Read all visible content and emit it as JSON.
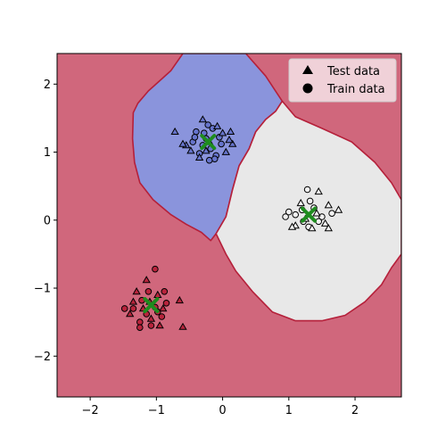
{
  "chart_data": {
    "type": "scatter",
    "title": "",
    "xlabel": "",
    "ylabel": "",
    "xlim": [
      -2.5,
      2.7
    ],
    "ylim": [
      -2.6,
      2.45
    ],
    "xticks": [
      "−2",
      "−1",
      "0",
      "1",
      "2"
    ],
    "xtick_values": [
      -2,
      -1,
      0,
      1,
      2
    ],
    "yticks": [
      "−2",
      "−1",
      "0",
      "1",
      "2"
    ],
    "ytick_values": [
      -2,
      -1,
      0,
      1,
      2
    ],
    "grid": false,
    "legend_position": "top-right",
    "legend": [
      {
        "label": "Test data",
        "marker": "triangle"
      },
      {
        "label": "Train data",
        "marker": "circle"
      }
    ],
    "colors": {
      "background_region": "#d0677c",
      "blue_region": "#8a94dc",
      "white_region": "#e8e8e8",
      "boundary": "#b5203a",
      "centroid": "#1e8c1e",
      "class_red": "#b8243c",
      "class_blue": "#6674cc",
      "class_white": "#f2f2f2"
    },
    "regions": {
      "blue": [
        [
          -1.35,
          1.58
        ],
        [
          -1.28,
          1.72
        ],
        [
          -1.12,
          1.9
        ],
        [
          -0.95,
          2.05
        ],
        [
          -0.78,
          2.2
        ],
        [
          -0.6,
          2.45
        ],
        [
          0.35,
          2.45
        ],
        [
          0.65,
          2.12
        ],
        [
          0.9,
          1.75
        ],
        [
          0.8,
          1.6
        ],
        [
          0.65,
          1.48
        ],
        [
          0.5,
          1.3
        ],
        [
          0.4,
          1.05
        ],
        [
          0.25,
          0.8
        ],
        [
          0.15,
          0.45
        ],
        [
          0.05,
          0.05
        ],
        [
          -0.1,
          -0.2
        ],
        [
          -0.18,
          -0.3
        ],
        [
          -0.32,
          -0.18
        ],
        [
          -0.55,
          -0.06
        ],
        [
          -0.78,
          0.08
        ],
        [
          -1.05,
          0.3
        ],
        [
          -1.25,
          0.55
        ],
        [
          -1.33,
          0.85
        ],
        [
          -1.36,
          1.2
        ]
      ],
      "white": [
        [
          0.9,
          1.75
        ],
        [
          1.1,
          1.52
        ],
        [
          1.5,
          1.35
        ],
        [
          1.95,
          1.15
        ],
        [
          2.3,
          0.85
        ],
        [
          2.55,
          0.55
        ],
        [
          2.7,
          0.3
        ],
        [
          2.7,
          -0.5
        ],
        [
          2.55,
          -0.7
        ],
        [
          2.4,
          -0.95
        ],
        [
          2.15,
          -1.2
        ],
        [
          1.85,
          -1.4
        ],
        [
          1.5,
          -1.48
        ],
        [
          1.1,
          -1.48
        ],
        [
          0.75,
          -1.35
        ],
        [
          0.45,
          -1.05
        ],
        [
          0.2,
          -0.75
        ],
        [
          0.05,
          -0.5
        ],
        [
          -0.1,
          -0.2
        ],
        [
          0.05,
          0.05
        ],
        [
          0.15,
          0.45
        ],
        [
          0.25,
          0.8
        ],
        [
          0.4,
          1.05
        ],
        [
          0.5,
          1.3
        ],
        [
          0.65,
          1.48
        ],
        [
          0.8,
          1.6
        ]
      ]
    },
    "series": [
      {
        "class": "blue",
        "train": [
          [
            -0.22,
            1.4
          ],
          [
            -0.28,
            1.28
          ],
          [
            -0.4,
            1.3
          ],
          [
            -0.45,
            1.15
          ],
          [
            -0.18,
            1.05
          ],
          [
            -0.1,
            0.95
          ],
          [
            -0.35,
            0.98
          ],
          [
            -0.25,
            1.2
          ],
          [
            -0.15,
            1.35
          ],
          [
            -0.05,
            1.22
          ],
          [
            -0.12,
            0.9
          ],
          [
            -0.3,
            1.1
          ],
          [
            -0.02,
            1.12
          ],
          [
            -0.42,
            1.22
          ],
          [
            -0.2,
            0.88
          ]
        ],
        "test": [
          [
            -0.72,
            1.3
          ],
          [
            -0.3,
            1.48
          ],
          [
            -0.55,
            1.1
          ],
          [
            -0.08,
            1.38
          ],
          [
            0.12,
            1.3
          ],
          [
            0.15,
            1.12
          ],
          [
            -0.48,
            1.02
          ],
          [
            -0.35,
            0.92
          ],
          [
            0.05,
            1.0
          ],
          [
            -0.2,
            1.15
          ],
          [
            -0.6,
            1.12
          ],
          [
            0.0,
            1.28
          ],
          [
            -0.25,
            1.02
          ],
          [
            0.1,
            1.18
          ]
        ]
      },
      {
        "class": "white",
        "train": [
          [
            1.28,
            0.45
          ],
          [
            1.0,
            0.12
          ],
          [
            1.22,
            -0.02
          ],
          [
            1.38,
            0.18
          ],
          [
            1.5,
            0.05
          ],
          [
            1.65,
            0.1
          ],
          [
            1.1,
            0.08
          ],
          [
            1.3,
            -0.1
          ],
          [
            1.45,
            -0.02
          ],
          [
            0.95,
            0.05
          ],
          [
            1.32,
            0.28
          ],
          [
            1.2,
            0.15
          ]
        ],
        "test": [
          [
            1.45,
            0.42
          ],
          [
            1.6,
            0.22
          ],
          [
            1.75,
            0.15
          ],
          [
            1.55,
            -0.05
          ],
          [
            1.35,
            -0.12
          ],
          [
            1.1,
            -0.08
          ],
          [
            1.6,
            -0.12
          ],
          [
            1.25,
            0.02
          ],
          [
            1.05,
            -0.1
          ],
          [
            1.42,
            0.1
          ],
          [
            1.18,
            0.25
          ]
        ]
      },
      {
        "class": "red",
        "train": [
          [
            -1.02,
            -0.72
          ],
          [
            -1.12,
            -1.05
          ],
          [
            -1.22,
            -1.18
          ],
          [
            -1.35,
            -1.3
          ],
          [
            -1.48,
            -1.3
          ],
          [
            -0.88,
            -1.05
          ],
          [
            -0.85,
            -1.22
          ],
          [
            -1.02,
            -1.28
          ],
          [
            -1.15,
            -1.38
          ],
          [
            -0.92,
            -1.42
          ],
          [
            -1.25,
            -1.5
          ],
          [
            -1.08,
            -1.55
          ],
          [
            -1.25,
            -1.58
          ],
          [
            -0.98,
            -1.35
          ]
        ],
        "test": [
          [
            -1.15,
            -0.88
          ],
          [
            -0.98,
            -1.1
          ],
          [
            -1.3,
            -1.05
          ],
          [
            -1.2,
            -1.3
          ],
          [
            -1.4,
            -1.38
          ],
          [
            -1.08,
            -1.45
          ],
          [
            -0.95,
            -1.55
          ],
          [
            -0.65,
            -1.18
          ],
          [
            -0.6,
            -1.57
          ],
          [
            -1.35,
            -1.2
          ],
          [
            -0.9,
            -1.3
          ],
          [
            -1.1,
            -1.2
          ]
        ]
      }
    ],
    "centroids": [
      [
        -0.22,
        1.15
      ],
      [
        1.3,
        0.08
      ],
      [
        -1.08,
        -1.25
      ]
    ]
  }
}
